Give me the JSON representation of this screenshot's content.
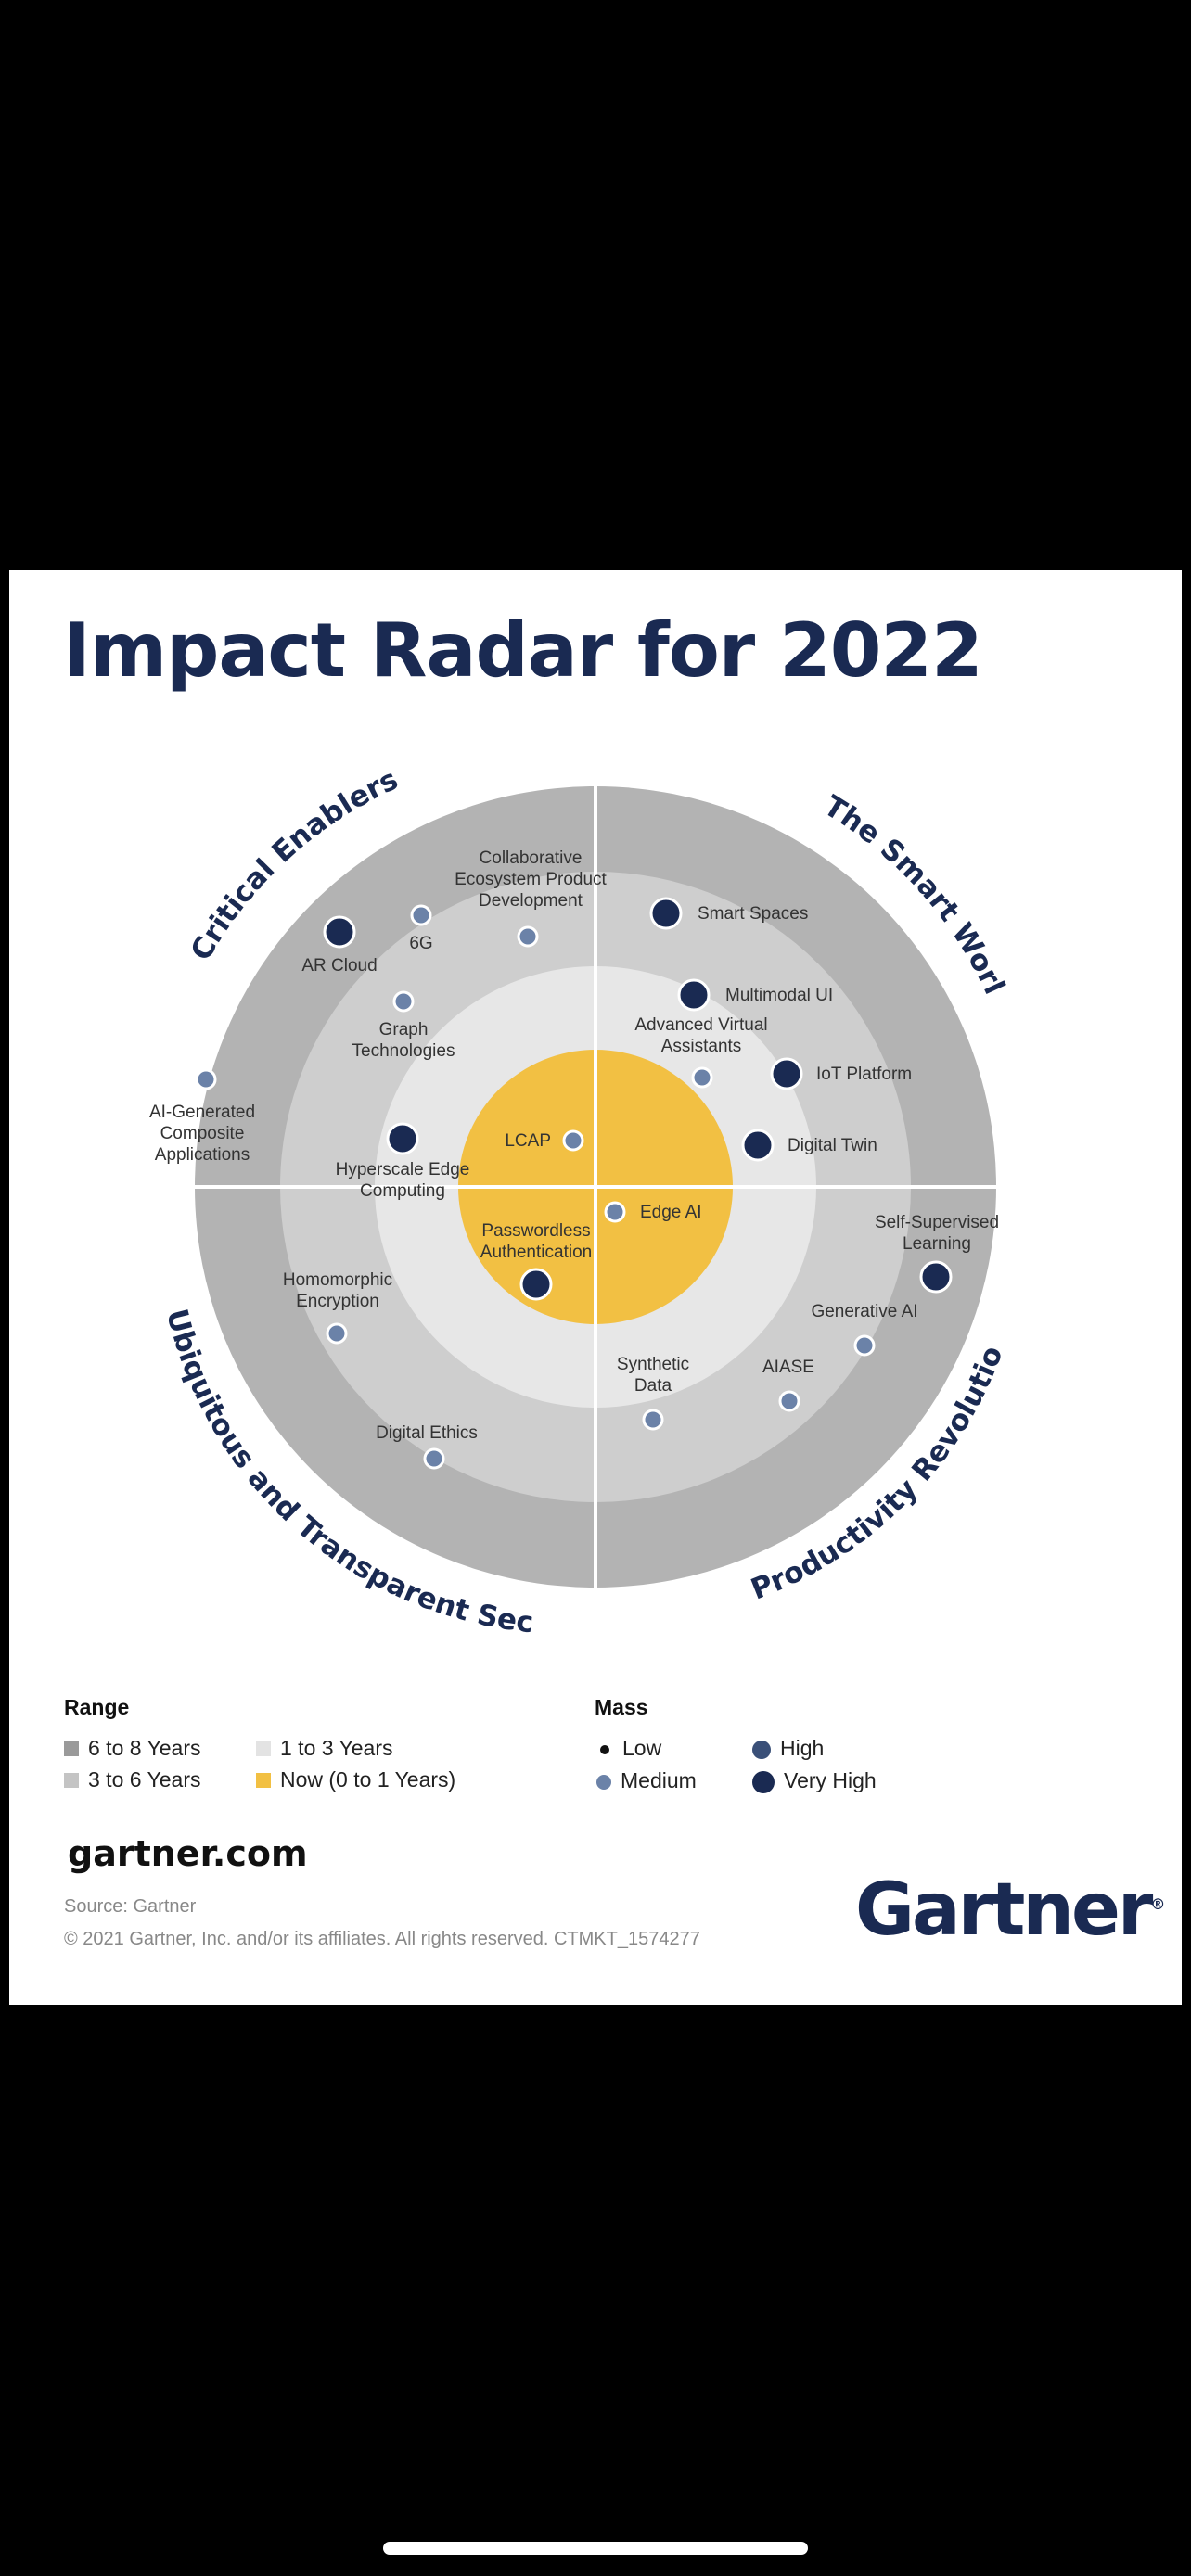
{
  "title": "Impact Radar for 2022",
  "quadrants": {
    "critical_enablers": "Critical Enablers",
    "smart_world": "The Smart World",
    "ubiquitous_security": "Ubiquitous and Transparent Security",
    "productivity_revolution": "Productivity Revolution"
  },
  "items": {
    "collaborative_ecosystem": [
      "Collaborative",
      "Ecosystem Product",
      "Development"
    ],
    "six_g": [
      "6G"
    ],
    "ar_cloud": [
      "AR Cloud"
    ],
    "graph_technologies": [
      "Graph",
      "Technologies"
    ],
    "ai_generated": [
      "AI-Generated",
      "Composite",
      "Applications"
    ],
    "hyperscale_edge": [
      "Hyperscale Edge",
      "Computing"
    ],
    "lcap": [
      "LCAP"
    ],
    "smart_spaces": [
      "Smart Spaces"
    ],
    "multimodal_ui": [
      "Multimodal UI"
    ],
    "advanced_virtual_assistants": [
      "Advanced Virtual",
      "Assistants"
    ],
    "iot_platform": [
      "IoT Platform"
    ],
    "digital_twin": [
      "Digital Twin"
    ],
    "edge_ai": [
      "Edge AI"
    ],
    "passwordless": [
      "Passwordless",
      "Authentication"
    ],
    "homomorphic": [
      "Homomorphic",
      "Encryption"
    ],
    "digital_ethics": [
      "Digital Ethics"
    ],
    "self_supervised": [
      "Self-Supervised",
      "Learning"
    ],
    "generative_ai": [
      "Generative AI"
    ],
    "aiase": [
      "AIASE"
    ],
    "synthetic_data": [
      "Synthetic",
      "Data"
    ]
  },
  "legend": {
    "range_title": "Range",
    "range_items": [
      "6 to 8 Years",
      "3 to 6 Years",
      "1 to 3 Years",
      "Now (0 to 1 Years)"
    ],
    "mass_title": "Mass",
    "mass_items": [
      "Low",
      "Medium",
      "High",
      "Very High"
    ]
  },
  "colors": {
    "ring_6_8": "#b3b3b3",
    "ring_3_6": "#cecece",
    "ring_1_3": "#e7e7e7",
    "ring_now": "#f2c043",
    "navy": "#1a2a52",
    "medium_dot": "#6b82a8",
    "high_dot": "#3a5078"
  },
  "footer": {
    "site": "gartner.com",
    "source": "Source: Gartner",
    "copyright": "© 2021 Gartner, Inc. and/or its affiliates. All rights reserved. CTMKT_1574277",
    "logo": "Gartner"
  }
}
